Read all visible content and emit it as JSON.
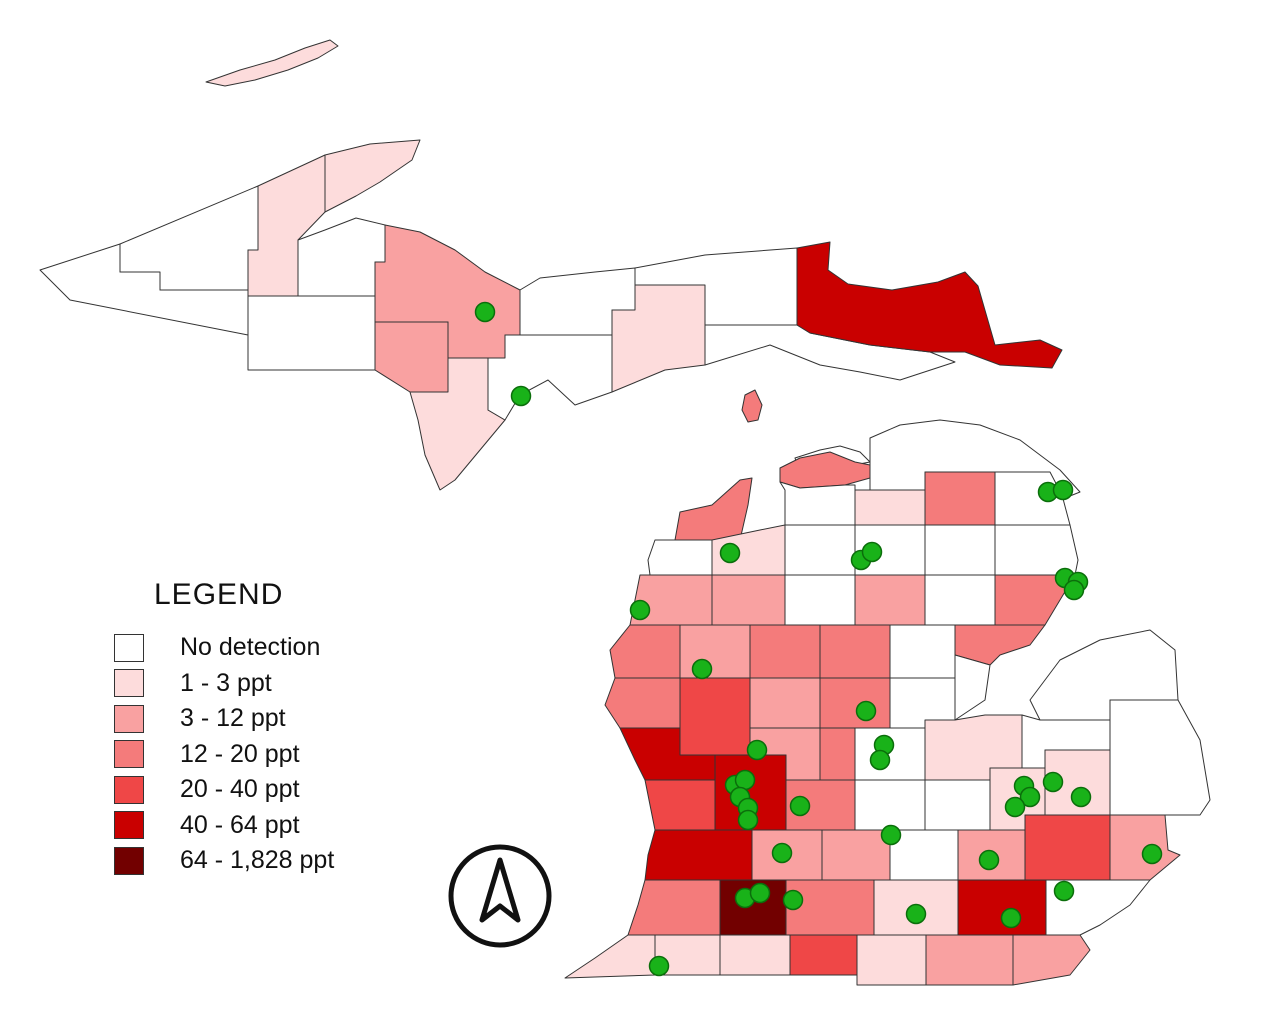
{
  "legend": {
    "title": "LEGEND",
    "classes": [
      {
        "label": "No detection",
        "color": "#ffffff"
      },
      {
        "label": "1 - 3 ppt",
        "color": "#fddcdc"
      },
      {
        "label": "3 - 12 ppt",
        "color": "#f9a1a1"
      },
      {
        "label": "12 - 20 ppt",
        "color": "#f47b7b"
      },
      {
        "label": "20 - 40 ppt",
        "color": "#ef4747"
      },
      {
        "label": "40 - 64 ppt",
        "color": "#c90000"
      },
      {
        "label": "64 - 1,828 ppt",
        "color": "#720000"
      }
    ]
  },
  "colors": {
    "outline": "#333333",
    "site_fill": "#19b219",
    "site_stroke": "#0b6e0b",
    "north_arrow": "#111111"
  },
  "icons": {
    "north_arrow": "north-arrow-icon",
    "site_marker": "sampling-site-icon"
  }
}
